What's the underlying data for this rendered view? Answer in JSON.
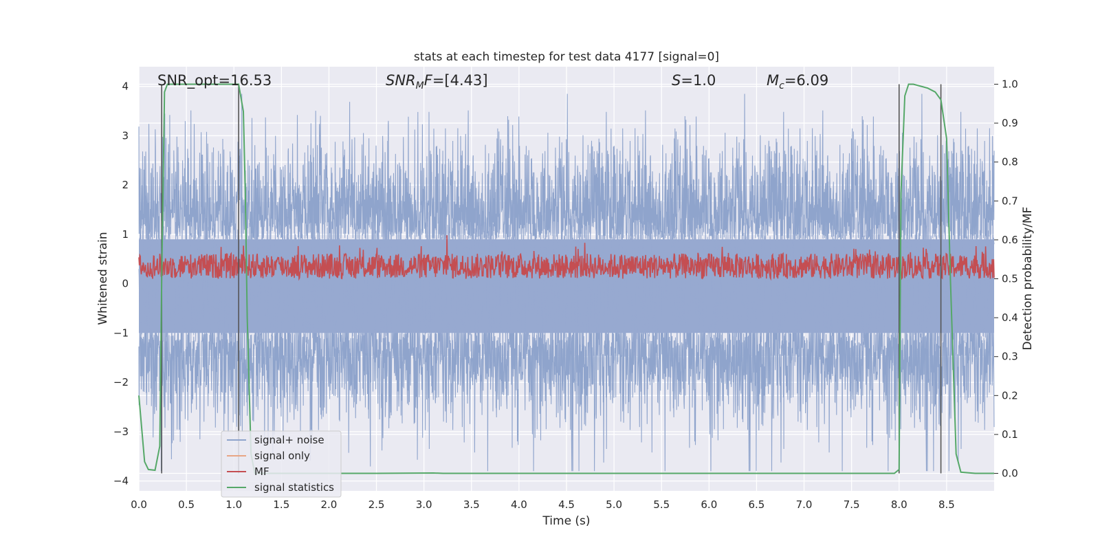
{
  "chart_data": {
    "type": "line",
    "title": "stats at each timestep for test data 4177 [signal=0]",
    "xlabel": "Time (s)",
    "ylabel_left": "Whitened strain",
    "ylabel_right": "Detection probability/MF",
    "xlim": [
      0.0,
      9.0
    ],
    "ylim_left": [
      -4.2,
      4.4
    ],
    "ylim_right": [
      -0.045,
      1.045
    ],
    "xticks": [
      "0.0",
      "0.5",
      "1.0",
      "1.5",
      "2.0",
      "2.5",
      "3.0",
      "3.5",
      "4.0",
      "4.5",
      "5.0",
      "5.5",
      "6.0",
      "6.5",
      "7.0",
      "7.5",
      "8.0",
      "8.5"
    ],
    "xtick_values": [
      0,
      0.5,
      1,
      1.5,
      2,
      2.5,
      3,
      3.5,
      4,
      4.5,
      5,
      5.5,
      6,
      6.5,
      7,
      7.5,
      8,
      8.5
    ],
    "yticks_left": [
      "−4",
      "−3",
      "−2",
      "−1",
      "0",
      "1",
      "2",
      "3",
      "4"
    ],
    "ytick_values_left": [
      -4,
      -3,
      -2,
      -1,
      0,
      1,
      2,
      3,
      4
    ],
    "yticks_right": [
      "0.0",
      "0.1",
      "0.2",
      "0.3",
      "0.4",
      "0.5",
      "0.6",
      "0.7",
      "0.8",
      "0.9",
      "1.0"
    ],
    "ytick_values_right": [
      0,
      0.1,
      0.2,
      0.3,
      0.4,
      0.5,
      0.6,
      0.7,
      0.8,
      0.9,
      1.0
    ],
    "annotations": {
      "snr_opt": "SNR_opt=16.53",
      "snr_mf_base": "SNR",
      "snr_mf_sub": "M",
      "snr_mf_tail": "F",
      "snr_mf_value": "=[4.43]",
      "s_sym": "S",
      "s_value": "=1.0",
      "mc_sym": "M",
      "mc_sub": "c",
      "mc_value": "=6.09"
    },
    "legend": {
      "position": "lower-left",
      "entries": [
        {
          "label": "signal+ noise",
          "color": "#8fa4cc"
        },
        {
          "label": "signal only",
          "color": "#e8a584"
        },
        {
          "label": "MF",
          "color": "#c44e52"
        },
        {
          "label": "signal statistics",
          "color": "#55a868"
        }
      ]
    },
    "vertical_lines_x": [
      0.24,
      1.05,
      8.0,
      8.44
    ],
    "series": [
      {
        "name": "signal statistics",
        "axis": "right",
        "color": "#55a868",
        "x": [
          0.0,
          0.06,
          0.1,
          0.17,
          0.22,
          0.24,
          0.27,
          0.3,
          0.32,
          1.0,
          1.05,
          1.1,
          1.12,
          1.14,
          1.18,
          1.22,
          2.5,
          3.1,
          3.2,
          7.95,
          8.0,
          8.02,
          8.06,
          8.1,
          8.15,
          8.3,
          8.38,
          8.44,
          8.5,
          8.54,
          8.6,
          8.65,
          8.8,
          9.0
        ],
        "values": [
          0.2,
          0.03,
          0.01,
          0.008,
          0.07,
          0.5,
          0.98,
          1.0,
          1.0,
          1.0,
          1.0,
          0.93,
          0.72,
          0.4,
          0.05,
          0.0,
          0.0,
          0.001,
          0.0,
          0.0,
          0.01,
          0.72,
          0.97,
          1.0,
          1.0,
          0.99,
          0.98,
          0.96,
          0.86,
          0.5,
          0.05,
          0.003,
          0.0,
          0.0
        ]
      },
      {
        "name": "signal+ noise",
        "axis": "left",
        "color": "#8fa4cc",
        "generated": "dense whitened noise, approx amplitude envelope +/-2.5, peaks to +/-3.8"
      },
      {
        "name": "MF",
        "axis": "right",
        "color": "#c44e52",
        "generated": "matched-filter output, approx 0.5 to 0.59"
      }
    ]
  }
}
